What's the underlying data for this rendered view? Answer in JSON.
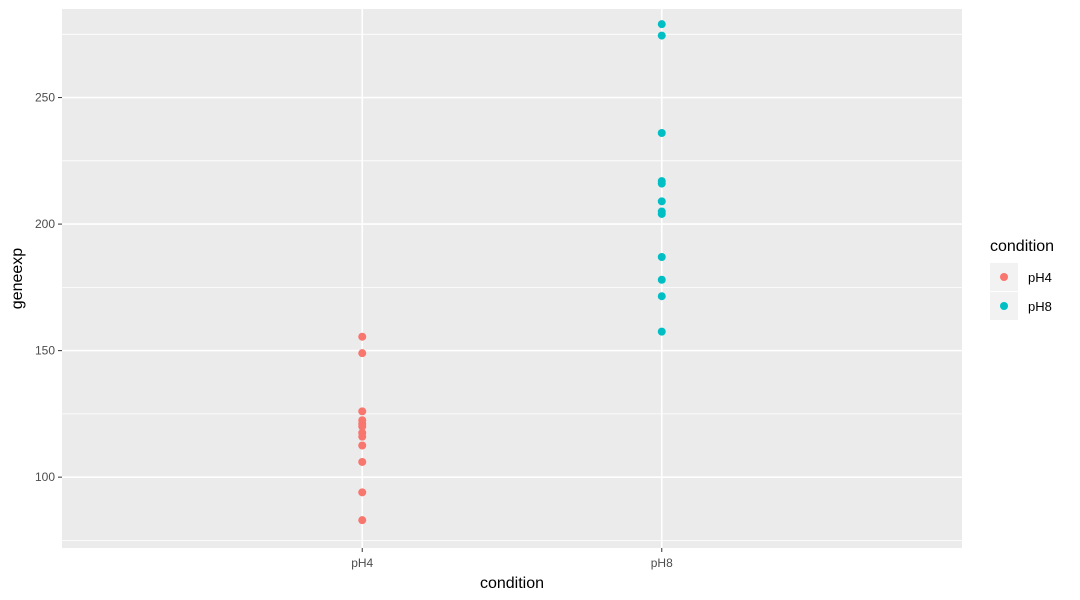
{
  "chart_data": {
    "type": "scatter",
    "xlabel": "condition",
    "ylabel": "geneexp",
    "categories": [
      "pH4",
      "pH8"
    ],
    "ylim": [
      72,
      285
    ],
    "y_ticks": [
      100,
      150,
      200,
      250
    ],
    "grid": true,
    "legend": {
      "title": "condition",
      "position": "right",
      "entries": [
        "pH4",
        "pH8"
      ]
    },
    "series": [
      {
        "name": "pH4",
        "color": "#F8766D",
        "x": "pH4",
        "values": [
          155.5,
          149,
          126,
          122.5,
          121,
          120,
          117.5,
          116,
          112.5,
          106,
          94,
          83
        ]
      },
      {
        "name": "pH8",
        "color": "#00BFC4",
        "x": "pH8",
        "values": [
          279,
          274.5,
          236,
          217,
          216,
          209,
          205,
          204,
          187,
          178,
          171.5,
          157.5
        ]
      }
    ]
  }
}
